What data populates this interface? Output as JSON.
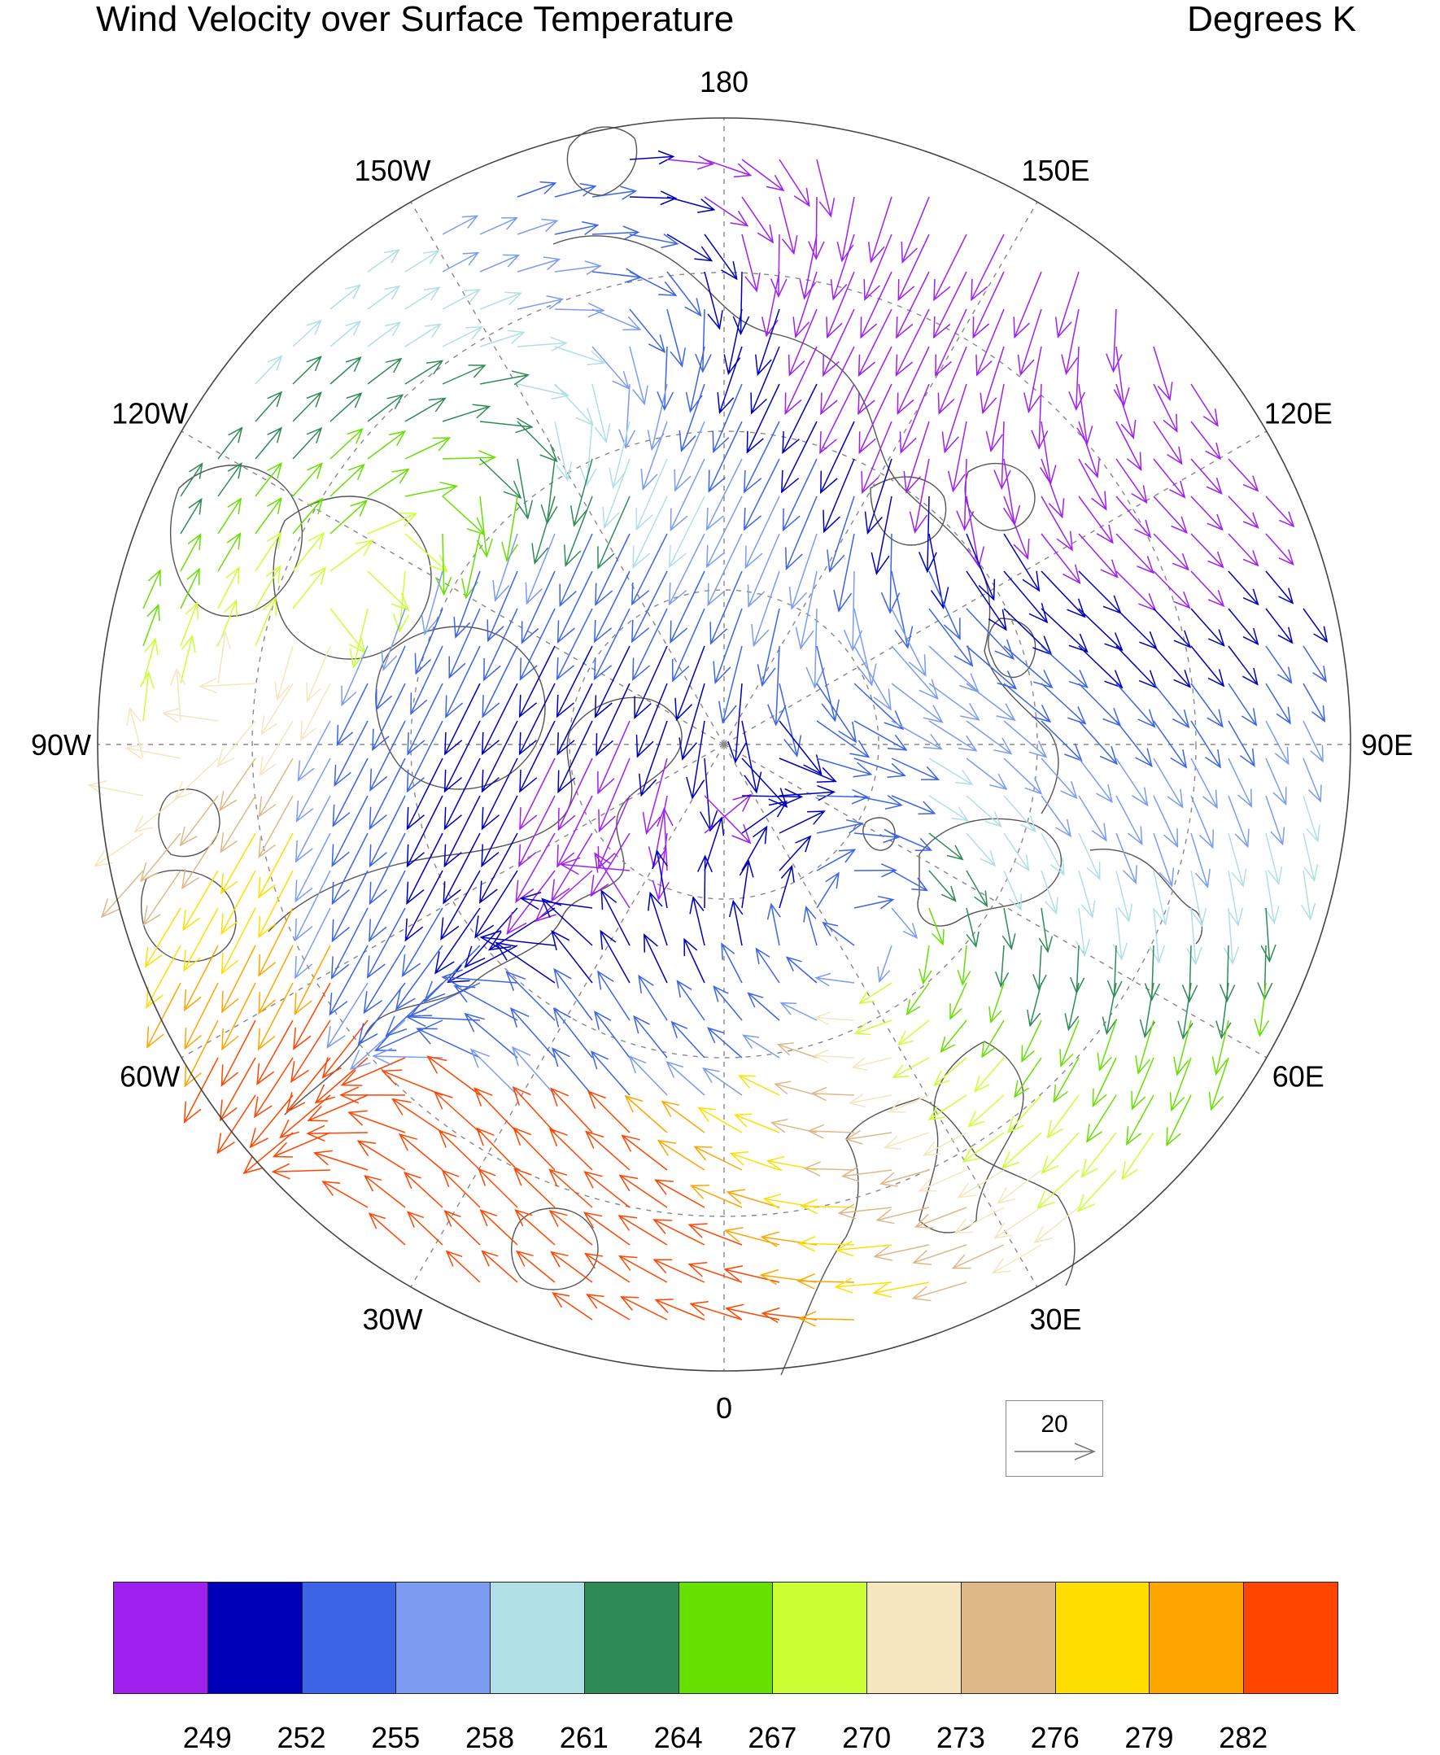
{
  "header": {
    "title": "Wind Velocity over Surface Temperature",
    "units": "Degrees K"
  },
  "map": {
    "projection": "north-polar-stereographic",
    "longitude_labels": [
      "180",
      "150E",
      "120E",
      "90E",
      "60E",
      "30E",
      "0",
      "30W",
      "60W",
      "90W",
      "120W",
      "150W"
    ],
    "gridlines_dashed": true,
    "coastlines": true
  },
  "vector_reference": {
    "magnitude_label": "20"
  },
  "colorbar": {
    "colors": [
      "#a020f0",
      "#0000b8",
      "#3c64e6",
      "#7b9cf0",
      "#b0dfe6",
      "#2e8b57",
      "#66e000",
      "#ccff33",
      "#f5e6bf",
      "#deb887",
      "#ffdf00",
      "#ffa500",
      "#ff4500"
    ],
    "labels": [
      "249",
      "252",
      "255",
      "258",
      "261",
      "264",
      "267",
      "270",
      "273",
      "276",
      "279",
      "282"
    ]
  }
}
